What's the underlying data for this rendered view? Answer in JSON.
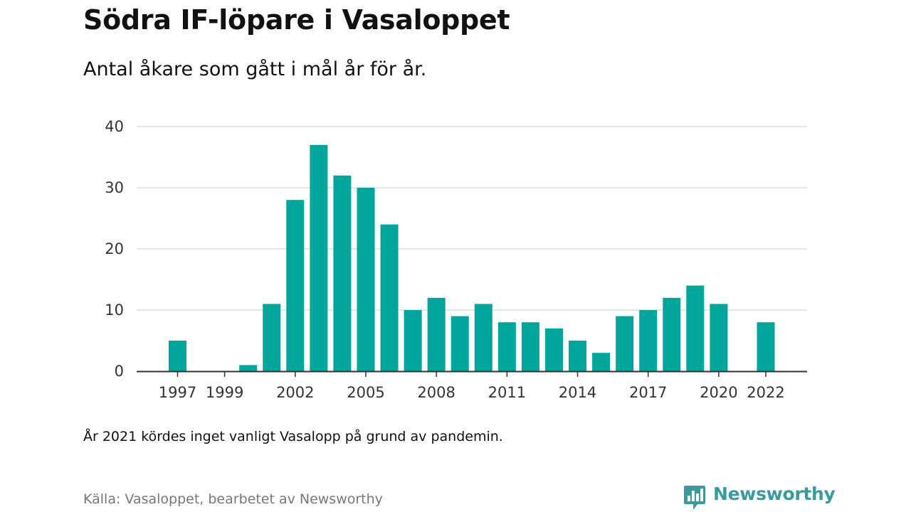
{
  "title": "Södra IF-löpare i Vasaloppet",
  "subtitle": "Antal åkare som gått i mål år för år.",
  "note": "År 2021 kördes inget vanligt Vasalopp på grund av pandemin.",
  "source": "Källa: Vasaloppet, bearbetet av Newsworthy",
  "brand": {
    "name": "Newsworthy",
    "color": "#3a9aa0",
    "logo_icon": "newsworthy-chat-bars-icon"
  },
  "chart_data": {
    "type": "bar",
    "x": [
      1997,
      1998,
      1999,
      2000,
      2001,
      2002,
      2003,
      2004,
      2005,
      2006,
      2007,
      2008,
      2009,
      2010,
      2011,
      2012,
      2013,
      2014,
      2015,
      2016,
      2017,
      2018,
      2019,
      2020,
      2021,
      2022
    ],
    "values": [
      5,
      0,
      0,
      1,
      11,
      28,
      37,
      32,
      30,
      24,
      10,
      12,
      9,
      11,
      8,
      8,
      7,
      5,
      3,
      9,
      10,
      12,
      14,
      11,
      0,
      8
    ],
    "x_tick_labels": [
      1997,
      1999,
      2002,
      2005,
      2008,
      2011,
      2014,
      2017,
      2020,
      2022
    ],
    "y_ticks": [
      0,
      10,
      20,
      30,
      40
    ],
    "ylim": [
      0,
      40
    ],
    "xlabel": "",
    "ylabel": "",
    "grid": true,
    "bar_color": "#00a59b",
    "grid_color": "#dddddd",
    "axis_color": "#333333"
  }
}
